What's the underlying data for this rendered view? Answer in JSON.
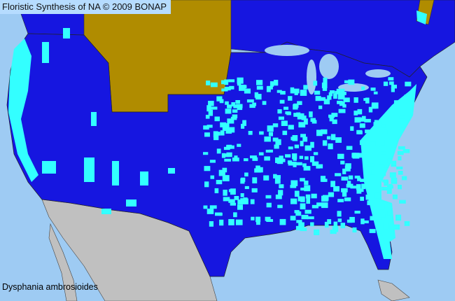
{
  "map": {
    "title": "Floristic Synthesis of NA © 2009 BONAP",
    "species": "Dysphania ambrosioides",
    "colors": {
      "ocean": "#9ecbf3",
      "state_present": "#1616e0",
      "county_present": "#33ffff",
      "state_absent": "#b08c00",
      "outside_area": "#c0c0c0",
      "boundary": "#333333"
    }
  }
}
